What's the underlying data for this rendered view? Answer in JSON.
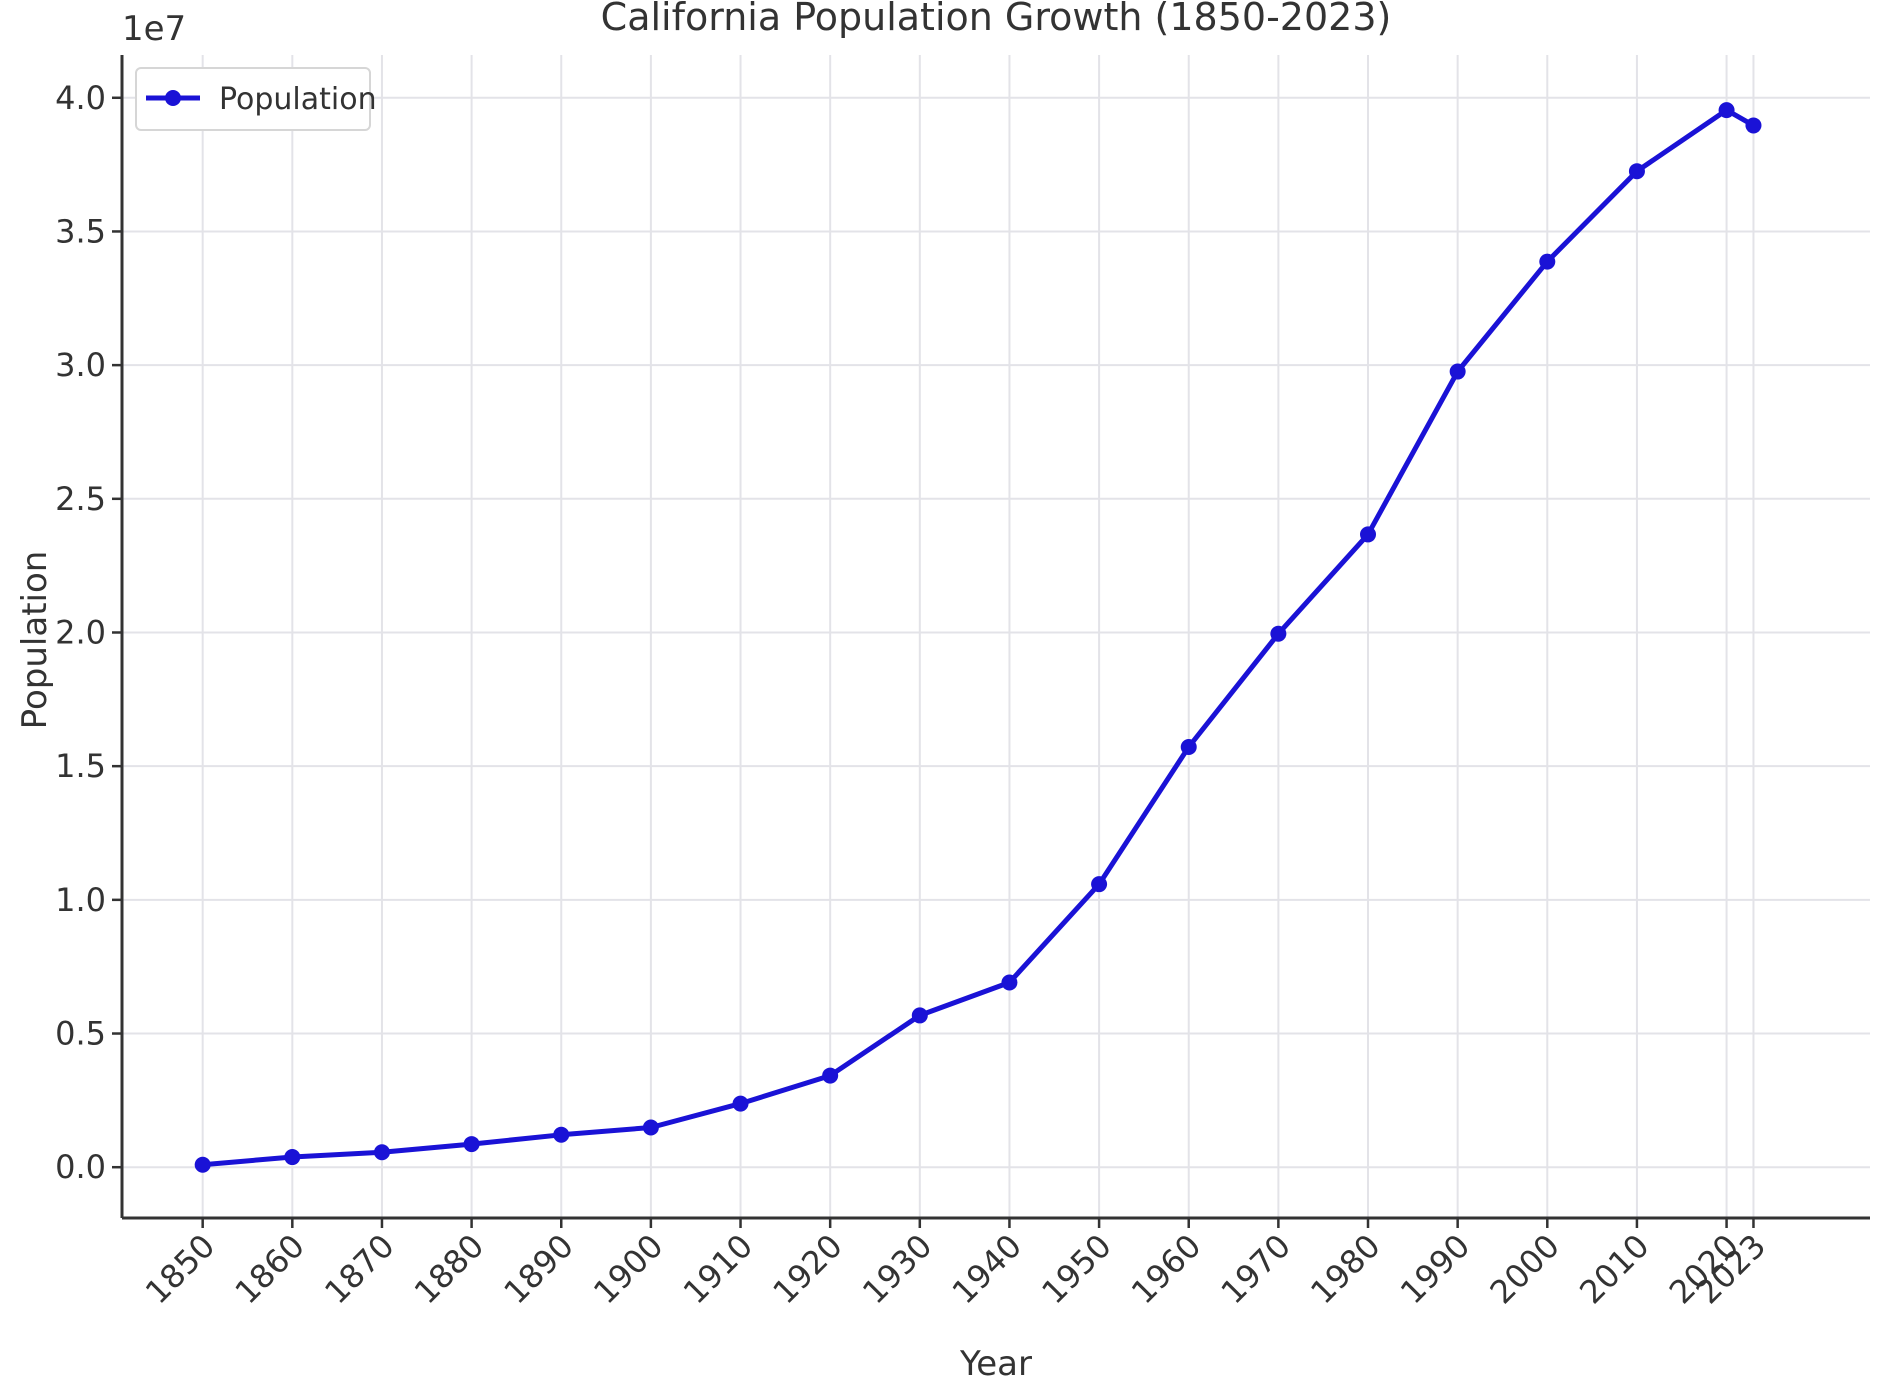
{
  "chart_data": {
    "type": "line",
    "title": "California Population Growth (1850-2023)",
    "xlabel": "Year",
    "ylabel": "Population",
    "y_offset_label": "1e7",
    "x_ticks": [
      "1850",
      "1860",
      "1870",
      "1880",
      "1890",
      "1900",
      "1910",
      "1920",
      "1930",
      "1940",
      "1950",
      "1960",
      "1970",
      "1980",
      "1990",
      "2000",
      "2010",
      "2020",
      "2023"
    ],
    "y_ticks": [
      "0.0",
      "0.5",
      "1.0",
      "1.5",
      "2.0",
      "2.5",
      "3.0",
      "3.5",
      "4.0"
    ],
    "ylim": [
      -1900000,
      41600000
    ],
    "xlim": [
      1841,
      2036
    ],
    "grid": true,
    "legend_position": "top-left",
    "series": [
      {
        "name": "Population",
        "color": "#1a12d6",
        "marker": "circle",
        "x": [
          1850,
          1860,
          1870,
          1880,
          1890,
          1900,
          1910,
          1920,
          1930,
          1940,
          1950,
          1960,
          1970,
          1980,
          1990,
          2000,
          2010,
          2020,
          2023
        ],
        "y": [
          92597,
          379994,
          560247,
          864694,
          1213398,
          1485053,
          2377549,
          3426861,
          5677251,
          6907387,
          10586223,
          15717204,
          19953134,
          23667902,
          29760021,
          33871648,
          37253956,
          39538223,
          38965193
        ]
      }
    ]
  }
}
